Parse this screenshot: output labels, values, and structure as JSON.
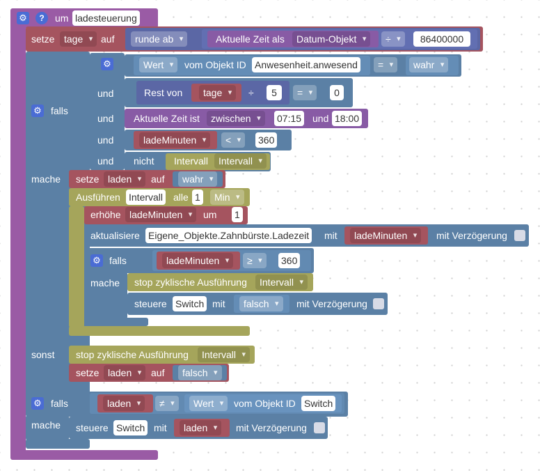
{
  "event": {
    "prefix": "um",
    "name": "ladesteuerung"
  },
  "set1": {
    "setze": "setze",
    "var": "tage",
    "auf": "auf",
    "round_op": "runde ab",
    "time_label": "Aktuelle Zeit als",
    "time_format": "Datum-Objekt",
    "div_op": "÷",
    "divisor": "86400000"
  },
  "if1": {
    "falls": "falls",
    "mache": "mache",
    "sonst": "sonst",
    "cond1": {
      "wert": "Wert",
      "vom_objekt": "vom Objekt ID",
      "object_id": "Anwesenheit.anwesend",
      "op": "=",
      "value": "wahr"
    },
    "und": "und",
    "cond2": {
      "rest_von": "Rest von",
      "var": "tage",
      "div": "÷",
      "divisor": "5",
      "op": "=",
      "value": "0"
    },
    "cond3": {
      "label": "Aktuelle Zeit ist",
      "mode": "zwischen",
      "from": "07:15",
      "und": "und",
      "to": "18:00"
    },
    "cond4": {
      "var": "ladeMinuten",
      "op": "<",
      "value": "360"
    },
    "cond5": {
      "nicht": "nicht",
      "intervall": "Intervall",
      "var": "Intervall"
    }
  },
  "set_laden_true": {
    "setze": "setze",
    "var": "laden",
    "auf": "auf",
    "value": "wahr"
  },
  "interval": {
    "ausfuehren": "Ausführen",
    "name": "Intervall",
    "alle": "alle",
    "count": "1",
    "unit": "Min"
  },
  "increment": {
    "erhoehe": "erhöhe",
    "var": "ladeMinuten",
    "um": "um",
    "value": "1"
  },
  "update": {
    "aktualisiere": "aktualisiere",
    "object": "Eigene_Objekte.Zahnbürste.Ladezeit",
    "mit": "mit",
    "var": "ladeMinuten",
    "delay": "mit Verzögerung"
  },
  "if2": {
    "falls": "falls",
    "mache": "mache",
    "var": "ladeMinuten",
    "op": "≥",
    "value": "360"
  },
  "stop1": {
    "label": "stop zyklische Ausführung",
    "name": "Intervall"
  },
  "control1": {
    "steuere": "steuere",
    "object": "Switch",
    "mit": "mit",
    "value": "falsch",
    "delay": "mit Verzögerung"
  },
  "stop2": {
    "label": "stop zyklische Ausführung",
    "name": "Intervall"
  },
  "set_laden_false": {
    "setze": "setze",
    "var": "laden",
    "auf": "auf",
    "value": "falsch"
  },
  "if3": {
    "falls": "falls",
    "mache": "mache",
    "var": "laden",
    "op": "≠",
    "wert": "Wert",
    "vom_objekt": "vom Objekt ID",
    "object_id": "Switch"
  },
  "control2": {
    "steuere": "steuere",
    "object": "Switch",
    "mit": "mit",
    "var": "laden",
    "delay": "mit Verzögerung"
  },
  "icons": {
    "gear": "gear-icon",
    "help": "help-icon"
  },
  "colors": {
    "event": "#9a5ba5",
    "variable": "#a5545f",
    "logic": "#5b80a5",
    "math": "#5b67a5",
    "timer": "#a5a55b",
    "gear": "#4a6cd4"
  }
}
